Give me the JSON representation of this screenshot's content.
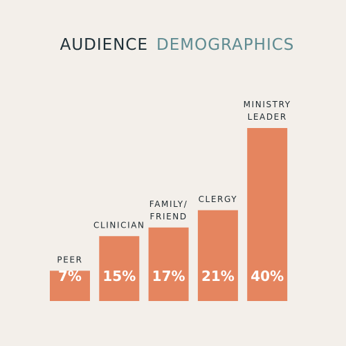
{
  "chart_data": {
    "type": "bar",
    "title": [
      "AUDIENCE",
      "DEMOGRAPHICS"
    ],
    "title_colors": [
      "#1f3038",
      "#5f8b91"
    ],
    "categories": [
      [
        "PEER"
      ],
      [
        "CLINICIAN"
      ],
      [
        "FAMILY/",
        "FRIEND"
      ],
      [
        "CLERGY"
      ],
      [
        "MINISTRY",
        "LEADER"
      ]
    ],
    "values": [
      7,
      15,
      17,
      21,
      40
    ],
    "value_labels": [
      "7%",
      "15%",
      "17%",
      "21%",
      "40%"
    ],
    "color": "#e5855f"
  }
}
